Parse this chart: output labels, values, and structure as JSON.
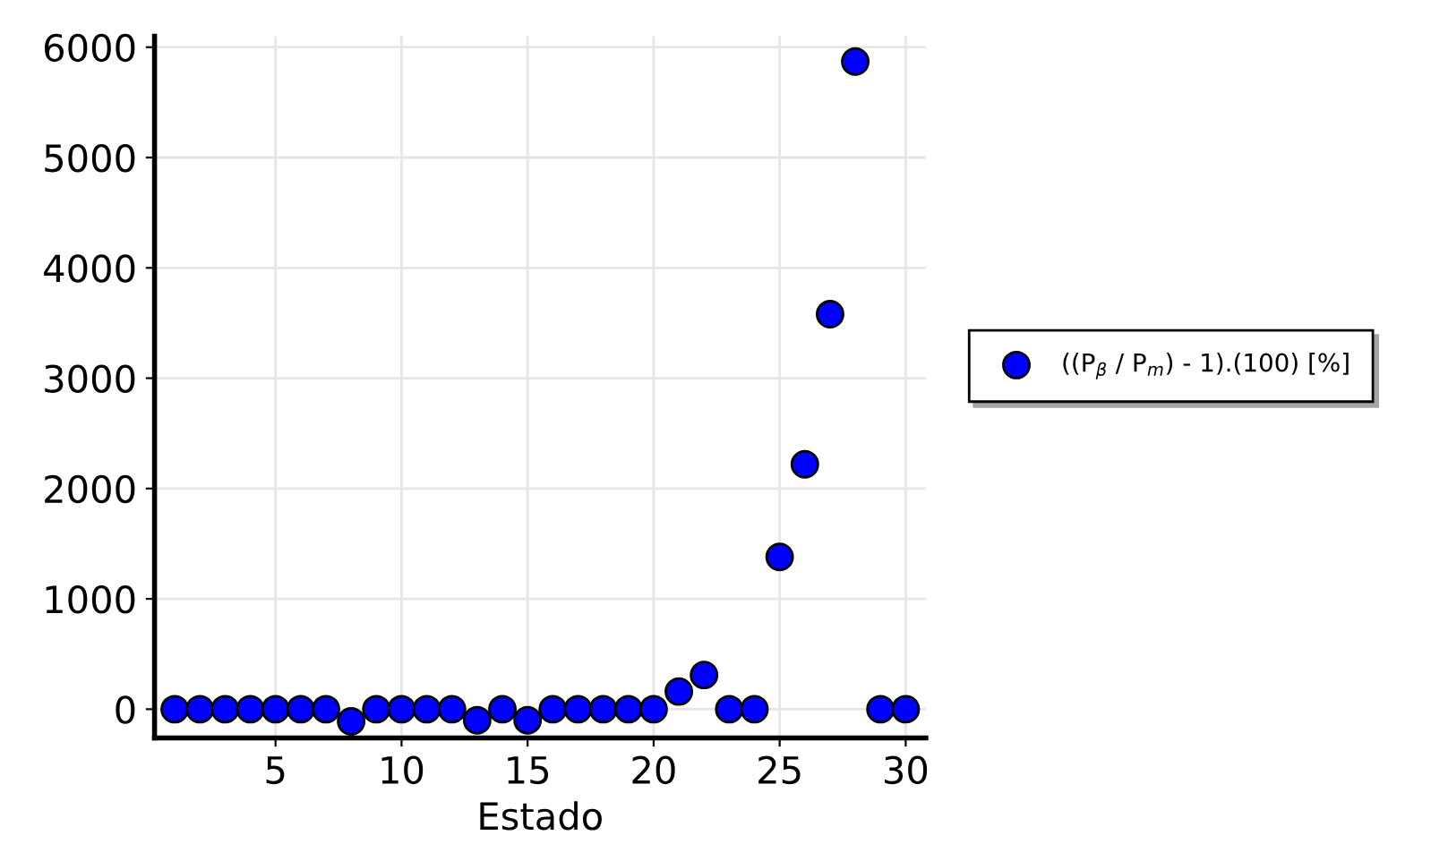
{
  "chart_data": {
    "type": "scatter",
    "xlabel": "Estado",
    "x": [
      1,
      2,
      3,
      4,
      5,
      6,
      7,
      8,
      9,
      10,
      11,
      12,
      13,
      14,
      15,
      16,
      17,
      18,
      19,
      20,
      21,
      22,
      23,
      24,
      25,
      26,
      27,
      28,
      29,
      30
    ],
    "series": [
      {
        "name": "((P$_{β}$ / P$_{m}$) - 1).(100) [%]",
        "color": "#0000ff",
        "values": [
          0,
          0,
          0,
          0,
          0,
          0,
          0,
          -110,
          0,
          0,
          0,
          0,
          -100,
          0,
          -100,
          0,
          0,
          0,
          0,
          0,
          160,
          310,
          0,
          0,
          1380,
          2220,
          3580,
          5870,
          0,
          0
        ]
      }
    ],
    "xlim": [
      0.2,
      30.8
    ],
    "ylim": [
      -260,
      6100
    ],
    "xticks": [
      5,
      10,
      15,
      20,
      25,
      30
    ],
    "yticks": [
      0,
      1000,
      2000,
      3000,
      4000,
      5000,
      6000
    ],
    "grid": true,
    "legend": "right",
    "marker": "circle"
  }
}
